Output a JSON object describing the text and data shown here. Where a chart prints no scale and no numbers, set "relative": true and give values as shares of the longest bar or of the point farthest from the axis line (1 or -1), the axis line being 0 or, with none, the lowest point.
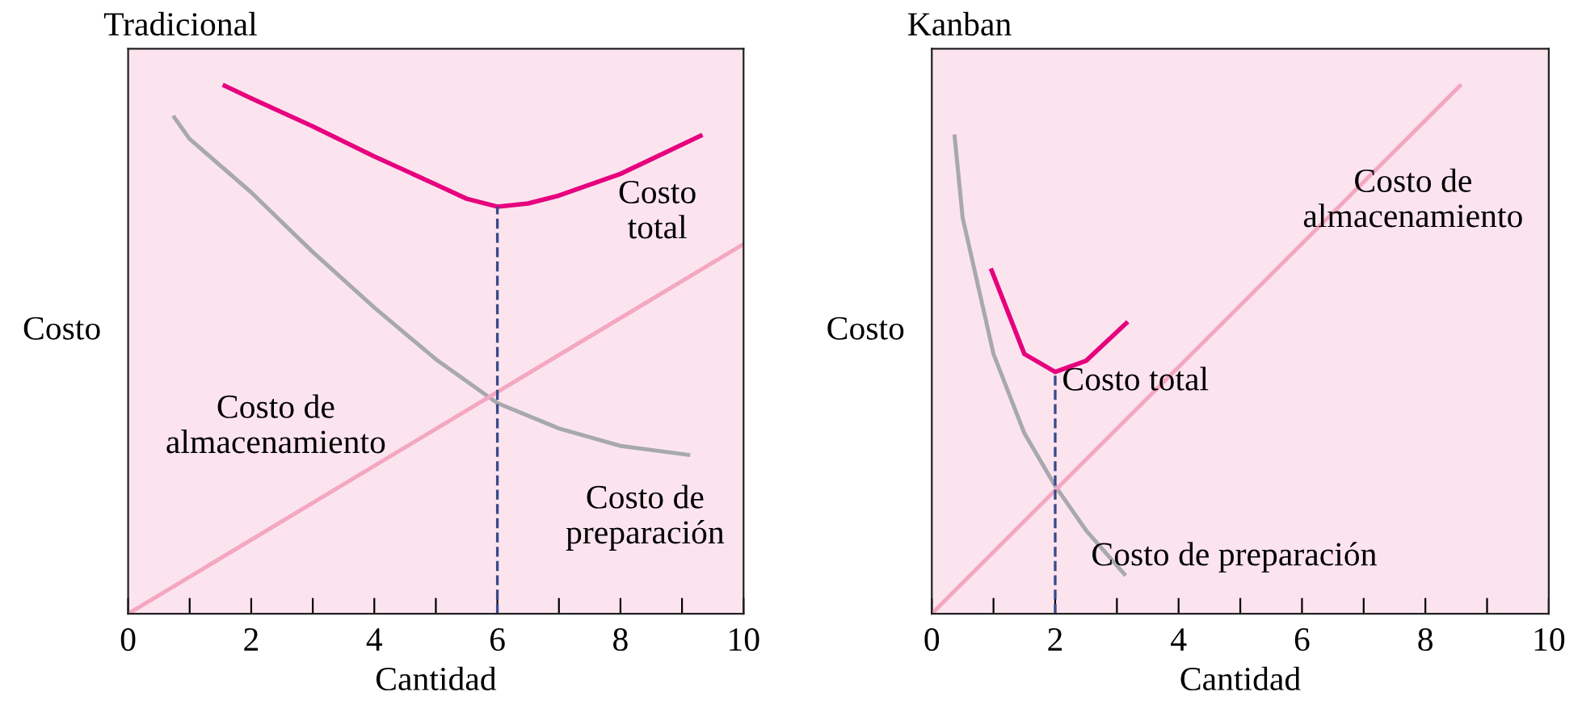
{
  "chart_data": [
    {
      "type": "line",
      "title": "Tradicional",
      "xlabel": "Cantidad",
      "ylabel": "Costo",
      "relative": true,
      "xlim": [
        0,
        10
      ],
      "xticks": [
        0,
        {
          "value": 1,
          "label": null
        },
        2,
        {
          "value": 3,
          "label": null
        },
        4,
        {
          "value": 5,
          "label": null
        },
        6,
        {
          "value": 7,
          "label": null
        },
        8,
        {
          "value": 9,
          "label": null
        },
        10
      ],
      "legend": false,
      "grid": false,
      "series": [
        {
          "name": "Costo total",
          "color": "#e6007e",
          "x": [
            1.57,
            2,
            3,
            4,
            5,
            5.5,
            6,
            6.5,
            7,
            8,
            9.3
          ],
          "values": [
            1.0,
            0.976,
            0.923,
            0.866,
            0.813,
            0.786,
            0.771,
            0.777,
            0.792,
            0.833,
            0.905
          ]
        },
        {
          "name": "Costo de preparación",
          "color": "#a7a9ac",
          "x": [
            0.75,
            1,
            2,
            3,
            4,
            5,
            6,
            7,
            8,
            9.1
          ],
          "values": [
            0.94,
            0.899,
            0.798,
            0.685,
            0.58,
            0.482,
            0.399,
            0.351,
            0.318,
            0.301
          ]
        },
        {
          "name": "Costo de almacenamiento",
          "color": "#f4a7c0",
          "x": [
            0,
            10
          ],
          "values": [
            0,
            0.7
          ]
        }
      ],
      "ref_lines": [
        {
          "axis": "x",
          "value": 6,
          "color": "#3a4a8a",
          "line_style": "dashed"
        }
      ]
    },
    {
      "type": "line",
      "title": "Kanban",
      "xlabel": "Cantidad",
      "ylabel": "Costo",
      "relative": true,
      "xlim": [
        0,
        10
      ],
      "xticks": [
        0,
        {
          "value": 1,
          "label": null
        },
        2,
        {
          "value": 3,
          "label": null
        },
        4,
        {
          "value": 5,
          "label": null
        },
        6,
        {
          "value": 7,
          "label": null
        },
        8,
        {
          "value": 9,
          "label": null
        },
        10
      ],
      "legend": false,
      "grid": false,
      "series": [
        {
          "name": "Costo total",
          "color": "#e6007e",
          "x": [
            0.97,
            1.5,
            2,
            2.5,
            3.15
          ],
          "values": [
            0.65,
            0.492,
            0.458,
            0.479,
            0.55
          ]
        },
        {
          "name": "Costo de preparación",
          "color": "#a7a9ac",
          "x": [
            0.37,
            0.5,
            1,
            1.5,
            2,
            2.5,
            3.12
          ],
          "values": [
            0.904,
            0.75,
            0.492,
            0.342,
            0.242,
            0.158,
            0.075
          ]
        },
        {
          "name": "Costo de almacenamiento",
          "color": "#f4a7c0",
          "x": [
            0,
            8.56
          ],
          "values": [
            0,
            1.0
          ]
        }
      ],
      "ref_lines": [
        {
          "axis": "x",
          "value": 2,
          "color": "#3a4a8a",
          "line_style": "dashed"
        }
      ]
    }
  ]
}
